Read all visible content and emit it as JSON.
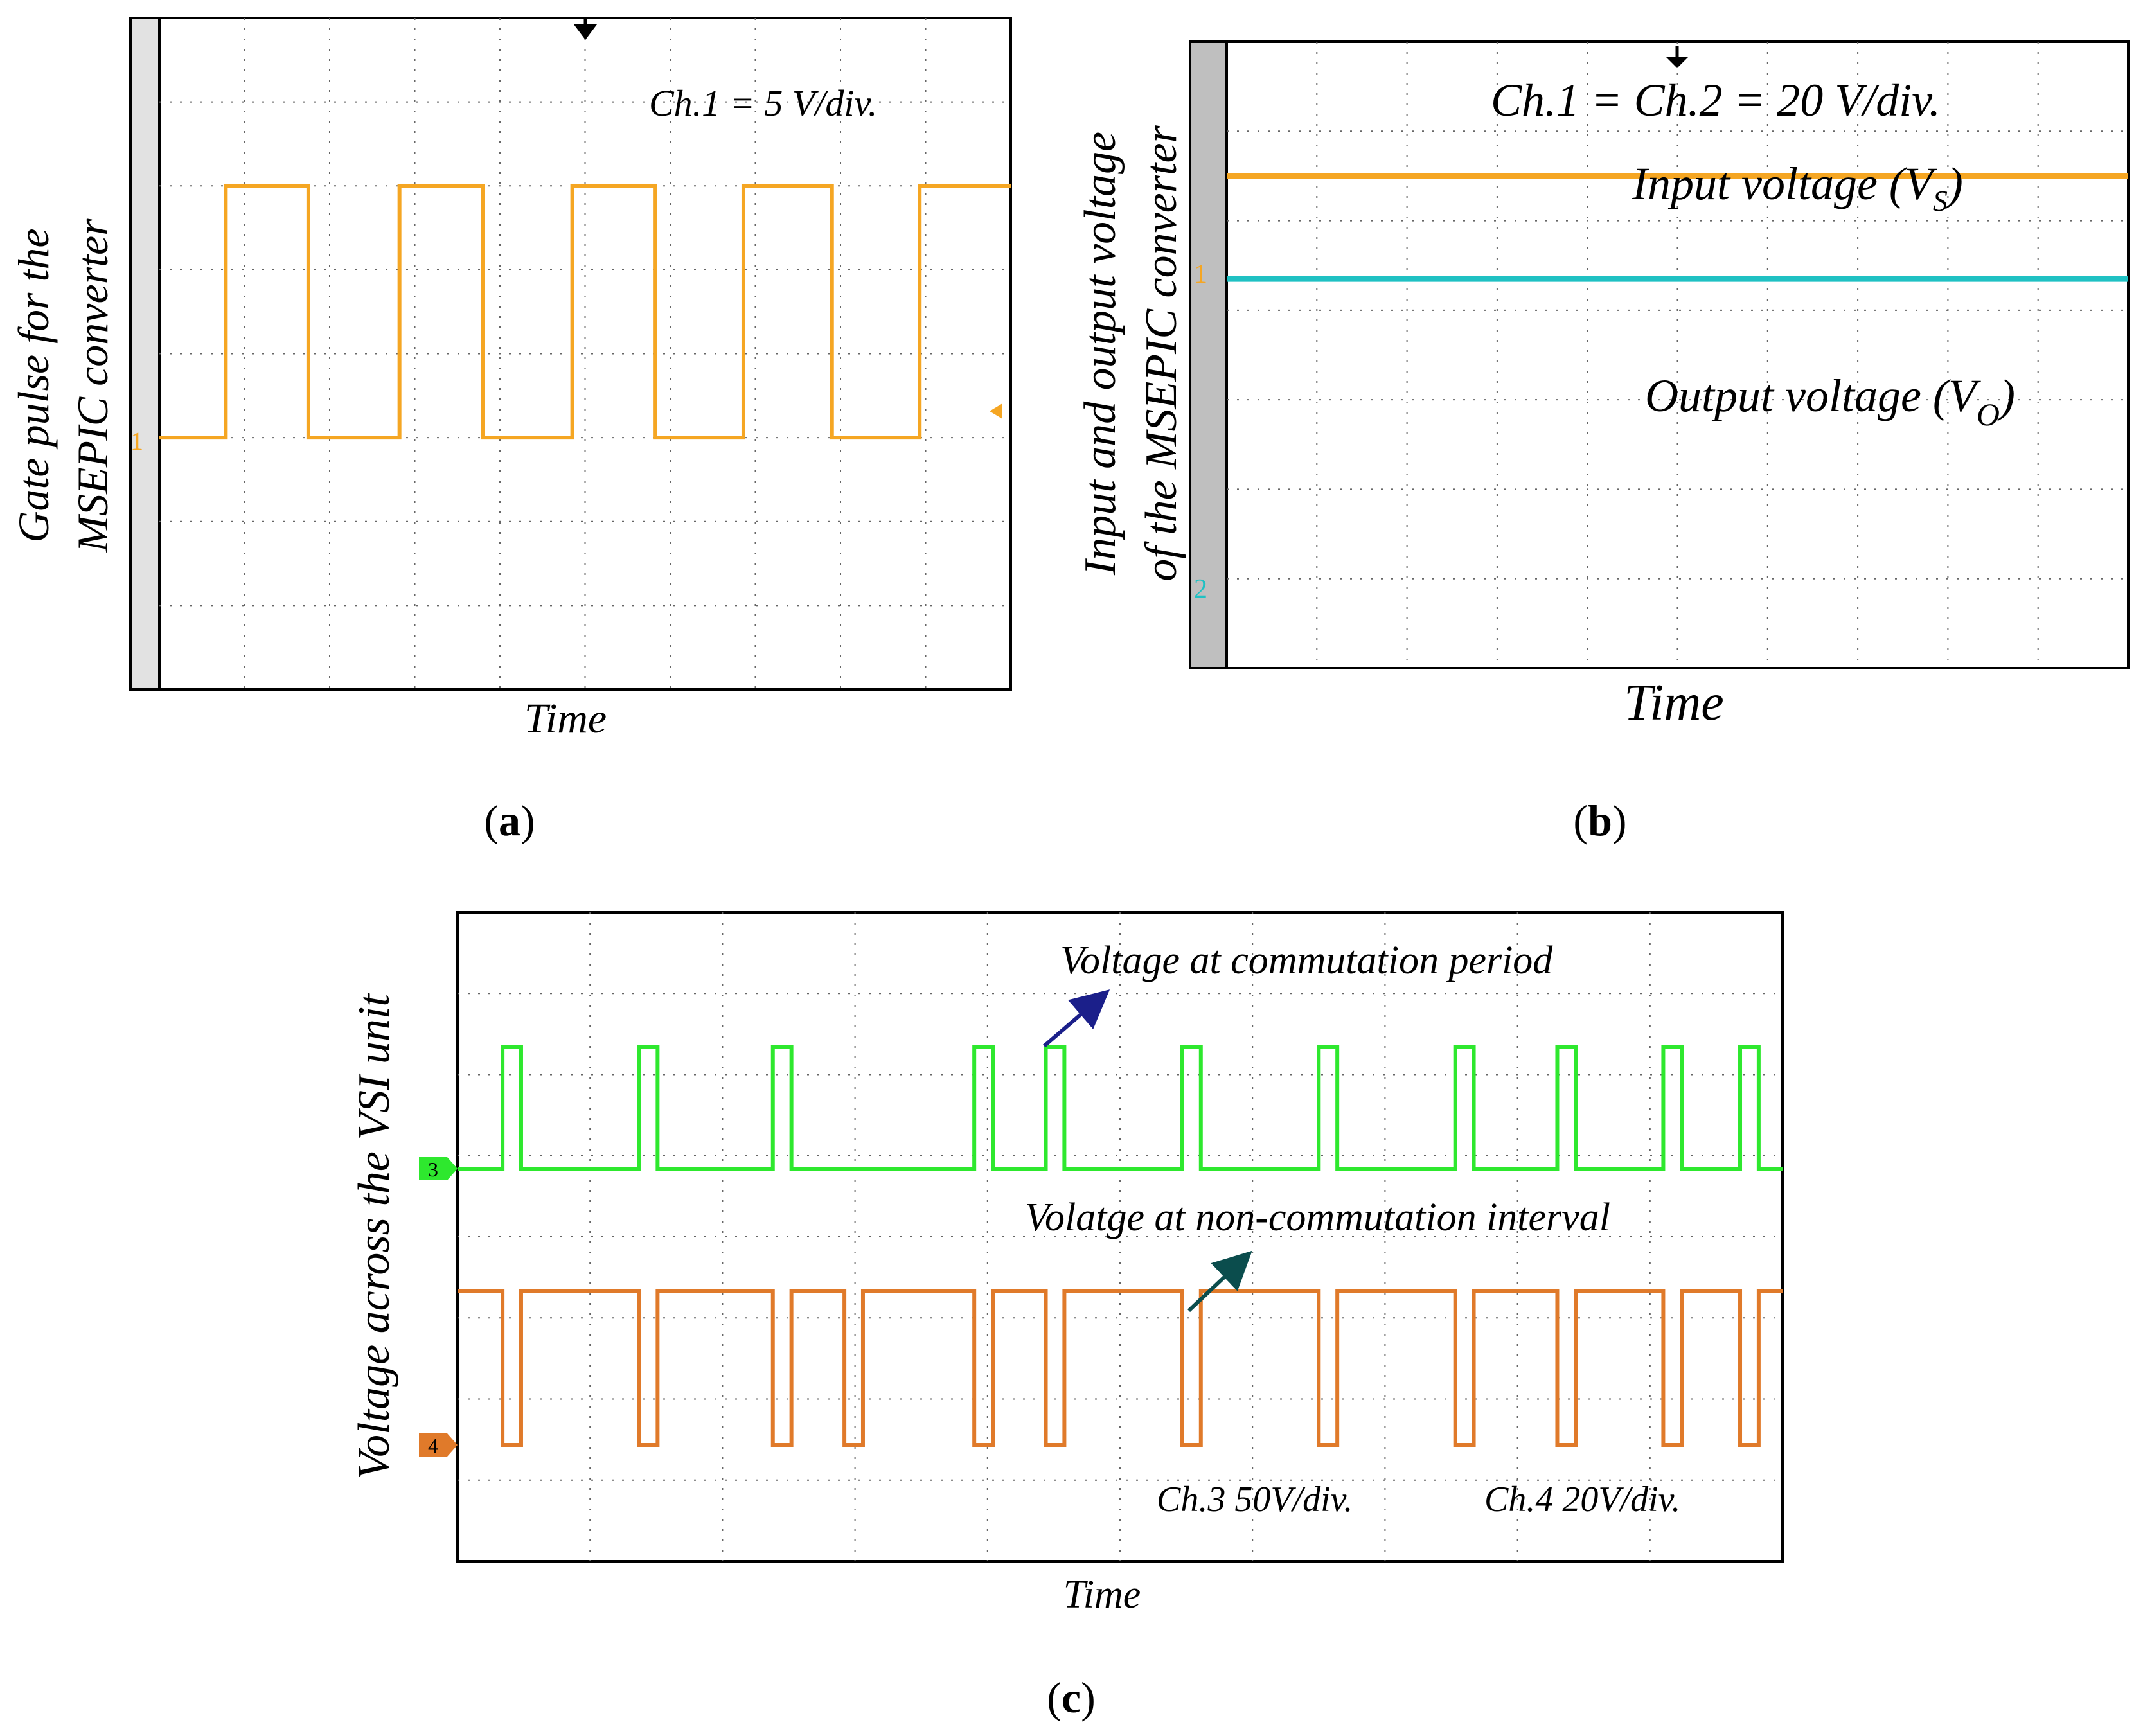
{
  "chart_data": [
    {
      "type": "line",
      "panel": "(a)",
      "title": "",
      "xlabel": "Time",
      "ylabel": "Gate pulse for the MSEPIC converter",
      "ylabel_lines": [
        "Gate pulse for the",
        "MSEPIC converter"
      ],
      "annotations": [
        "Ch.1 = 5 V/div."
      ],
      "channel_markers": [
        "1"
      ],
      "grid": true,
      "divisions": {
        "x": 10,
        "y": 8
      },
      "ylim": [
        -3,
        5
      ],
      "series": [
        {
          "name": "Ch.1 gate pulse",
          "color": "#f5a623",
          "step_x": [
            0,
            0.78,
            1.75,
            2.82,
            3.8,
            4.85,
            5.82,
            6.86,
            7.9,
            8.93,
            10
          ],
          "step_y": [
            0,
            3,
            0,
            3,
            0,
            3,
            0,
            3,
            0,
            3
          ]
        }
      ]
    },
    {
      "type": "line",
      "panel": "(b)",
      "title": "",
      "xlabel": "Time",
      "ylabel": "Input and output voltage of the MSEPIC converter",
      "ylabel_lines": [
        "Input and output voltage",
        "of the MSEPIC converter"
      ],
      "annotations": [
        "Ch.1 = Ch.2 = 20 V/div."
      ],
      "channel_markers": [
        "1",
        "2"
      ],
      "grid": true,
      "divisions": {
        "x": 10,
        "y": 7
      },
      "series": [
        {
          "name": "Input voltage",
          "label_main": "Input voltage (V",
          "label_sub": "S",
          "label_close": ")",
          "color": "#f5a623",
          "level_div": 1.5
        },
        {
          "name": "Output voltage",
          "label_main": "Output voltage (V",
          "label_sub": "O",
          "label_close": ")",
          "color": "#1fc1c3",
          "level_div": 2.65
        }
      ]
    },
    {
      "type": "line",
      "panel": "(c)",
      "title": "",
      "xlabel": "Time",
      "ylabel": "Voltage across the VSI unit",
      "annotations": [
        "Voltage at commutation period",
        "Volatge at non-commutation interval",
        "Ch.3 50V/div.",
        "Ch.4 20V/div."
      ],
      "channel_markers": [
        "3",
        "4"
      ],
      "grid": true,
      "divisions": {
        "x": 10,
        "y": 8
      },
      "series": [
        {
          "name": "Ch.3",
          "color": "#2ee82e",
          "pulse_starts": [
            0.34,
            1.37,
            2.38,
            3.9,
            4.44,
            5.47,
            6.5,
            7.53,
            8.3,
            9.1,
            9.68
          ],
          "pulse_width": 0.14,
          "high_div": 1.5,
          "low_div": 0
        },
        {
          "name": "Ch.4",
          "color": "#e07a2a",
          "notch_starts": [
            0.34,
            1.37,
            2.38,
            2.92,
            3.9,
            4.44,
            5.47,
            6.5,
            7.53,
            8.3,
            9.1,
            9.68
          ],
          "notch_width": 0.14,
          "high_div": 1.9,
          "low_div": 0
        }
      ]
    }
  ]
}
